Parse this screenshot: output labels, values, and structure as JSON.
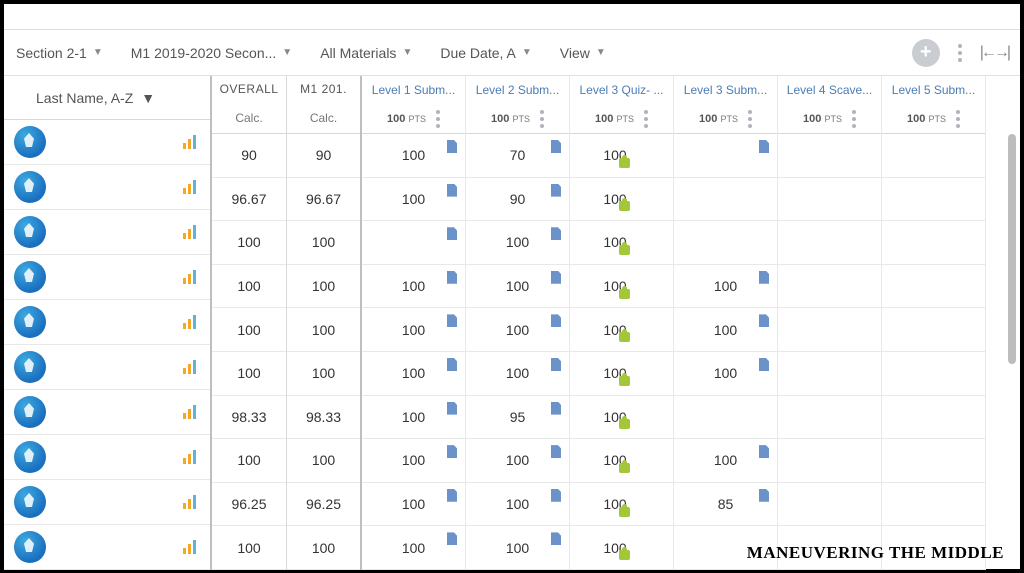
{
  "toolbar": {
    "filters": {
      "section": "Section 2-1",
      "period": "M1 2019-2020 Secon...",
      "materials": "All Materials",
      "due": "Due Date, A",
      "view": "View"
    }
  },
  "name_sort": "Last Name, A-Z",
  "calc_cols": [
    {
      "title": "OVERALL",
      "sub": "Calc."
    },
    {
      "title": "M1 201.",
      "sub": "Calc."
    }
  ],
  "assign_cols": [
    {
      "title": "Level 1 Subm...",
      "pts": "100",
      "icon": "doc"
    },
    {
      "title": "Level 2 Subm...",
      "pts": "100",
      "icon": "doc"
    },
    {
      "title": "Level 3 Quiz- ...",
      "pts": "100",
      "icon": "puzzle"
    },
    {
      "title": "Level 3 Subm...",
      "pts": "100",
      "icon": "doc"
    },
    {
      "title": "Level 4 Scave...",
      "pts": "100",
      "icon": ""
    },
    {
      "title": "Level 5 Subm...",
      "pts": "100",
      "icon": ""
    }
  ],
  "rows": [
    {
      "overall": "90",
      "m1": "90",
      "scores": [
        "100",
        "70",
        "100",
        "",
        "",
        ""
      ]
    },
    {
      "overall": "96.67",
      "m1": "96.67",
      "scores": [
        "100",
        "90",
        "100",
        "",
        "",
        ""
      ]
    },
    {
      "overall": "100",
      "m1": "100",
      "scores": [
        "",
        "100",
        "100",
        "",
        "",
        ""
      ]
    },
    {
      "overall": "100",
      "m1": "100",
      "scores": [
        "100",
        "100",
        "100",
        "100",
        "",
        ""
      ]
    },
    {
      "overall": "100",
      "m1": "100",
      "scores": [
        "100",
        "100",
        "100",
        "100",
        "",
        ""
      ]
    },
    {
      "overall": "100",
      "m1": "100",
      "scores": [
        "100",
        "100",
        "100",
        "100",
        "",
        ""
      ]
    },
    {
      "overall": "98.33",
      "m1": "98.33",
      "scores": [
        "100",
        "95",
        "100",
        "",
        "",
        ""
      ]
    },
    {
      "overall": "100",
      "m1": "100",
      "scores": [
        "100",
        "100",
        "100",
        "100",
        "",
        ""
      ]
    },
    {
      "overall": "96.25",
      "m1": "96.25",
      "scores": [
        "100",
        "100",
        "100",
        "85",
        "",
        ""
      ]
    },
    {
      "overall": "100",
      "m1": "100",
      "scores": [
        "100",
        "100",
        "100",
        "",
        "",
        ""
      ]
    }
  ],
  "watermark": "MANEUVERING THE MIDDLE",
  "colors": {
    "link": "#4a7db5",
    "doc_icon": "#6b93c9",
    "puzzle_icon": "#a4c639",
    "border": "#d8d8d8"
  }
}
